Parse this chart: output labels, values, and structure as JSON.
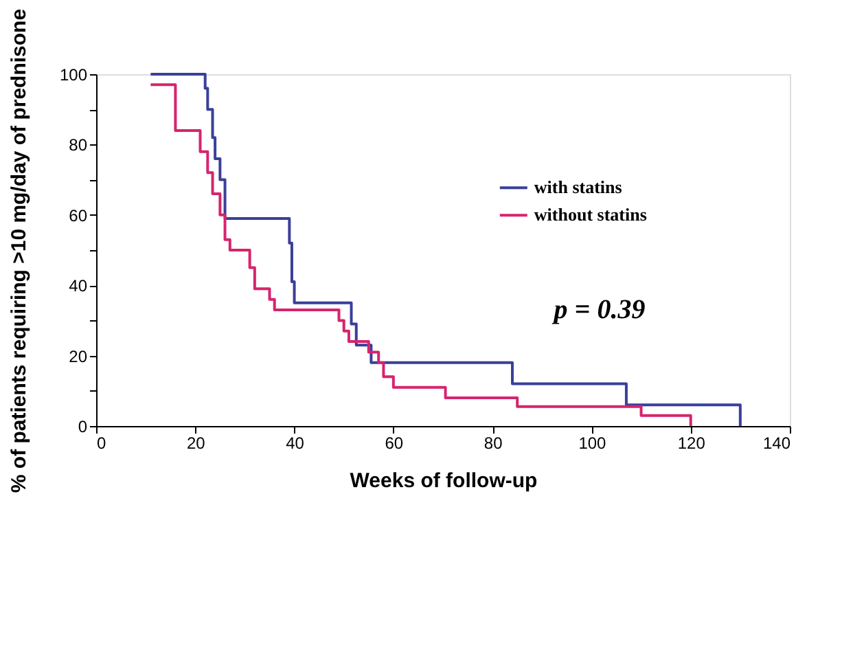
{
  "chart_data": {
    "type": "step",
    "xlabel": "Weeks of follow-up",
    "ylabel": "% of patients requiring >10 mg/day of prednisone",
    "xlim": [
      0,
      140
    ],
    "xticks": [
      0,
      20,
      40,
      60,
      80,
      100,
      120,
      140
    ],
    "ylim": [
      0,
      100
    ],
    "yticks": [
      0,
      {
        "value": 10,
        "label": null
      },
      20,
      {
        "value": 30,
        "label": null
      },
      40,
      {
        "value": 50,
        "label": null
      },
      60,
      {
        "value": 70,
        "label": null
      },
      80,
      {
        "value": 90,
        "label": null
      },
      100
    ],
    "series": [
      {
        "name": "with statins",
        "color": "#3a3f9a",
        "x": [
          11,
          22,
          22.5,
          23.5,
          24,
          25,
          26,
          39,
          39.5,
          40,
          40.5,
          51.5,
          52.5,
          55.5,
          84,
          107,
          130
        ],
        "values": [
          100,
          96,
          90,
          82,
          76,
          70,
          59,
          52,
          41,
          35,
          35,
          29,
          23,
          18,
          12,
          6,
          0
        ]
      },
      {
        "name": "without statins",
        "color": "#d6246e",
        "x": [
          11,
          16,
          21,
          22.5,
          23.5,
          25,
          26,
          27,
          31,
          32,
          35,
          36,
          49,
          50,
          51,
          52.5,
          55,
          57,
          58,
          60,
          70.5,
          85,
          110,
          120
        ],
        "values": [
          97,
          84,
          78,
          72,
          66,
          60,
          53,
          50,
          45,
          39,
          36,
          33,
          30,
          27,
          24,
          24,
          21,
          18,
          14,
          11,
          8,
          5.5,
          3,
          0
        ]
      }
    ],
    "legend": "right",
    "grid": false,
    "line_style": "solid",
    "marker": "none",
    "annotations": [
      "p = 0.39"
    ]
  }
}
